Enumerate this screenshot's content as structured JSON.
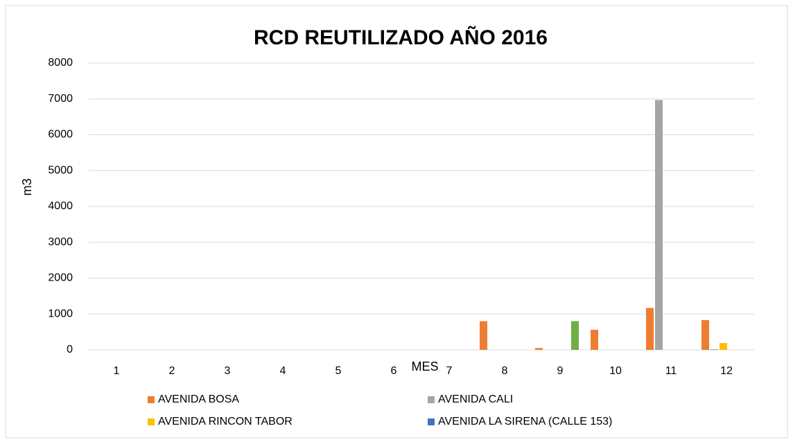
{
  "chart_data": {
    "type": "bar",
    "title": "RCD REUTILIZADO AÑO 2016",
    "x_label": "MES",
    "y_label": "m3",
    "categories": [
      "1",
      "2",
      "3",
      "4",
      "5",
      "6",
      "7",
      "8",
      "9",
      "10",
      "11",
      "12"
    ],
    "series": [
      {
        "name": "AVENIDA BOSA",
        "color": "#ed7d31",
        "values": [
          0,
          0,
          0,
          0,
          0,
          0,
          0,
          800,
          50,
          560,
          1170,
          830
        ]
      },
      {
        "name": "AVENIDA CALI",
        "color": "#a5a5a5",
        "values": [
          0,
          0,
          0,
          0,
          0,
          0,
          0,
          0,
          0,
          0,
          6970,
          20
        ]
      },
      {
        "name": "AVENIDA RINCON TABOR",
        "color": "#ffc000",
        "values": [
          0,
          0,
          0,
          0,
          0,
          0,
          0,
          0,
          0,
          0,
          0,
          190
        ]
      },
      {
        "name": "AVENIDA LA SIRENA (CALLE 153)",
        "color": "#4472c4",
        "values": [
          0,
          0,
          0,
          0,
          0,
          0,
          0,
          0,
          0,
          0,
          0,
          0
        ]
      },
      {
        "color": "#70ad47",
        "values": [
          0,
          0,
          0,
          0,
          0,
          0,
          0,
          0,
          800,
          0,
          0,
          0
        ]
      }
    ],
    "ylim": [
      0,
      8000
    ],
    "yticks": [
      0,
      1000,
      2000,
      3000,
      4000,
      5000,
      6000,
      7000,
      8000
    ],
    "grid": true,
    "legend": "bottom"
  }
}
